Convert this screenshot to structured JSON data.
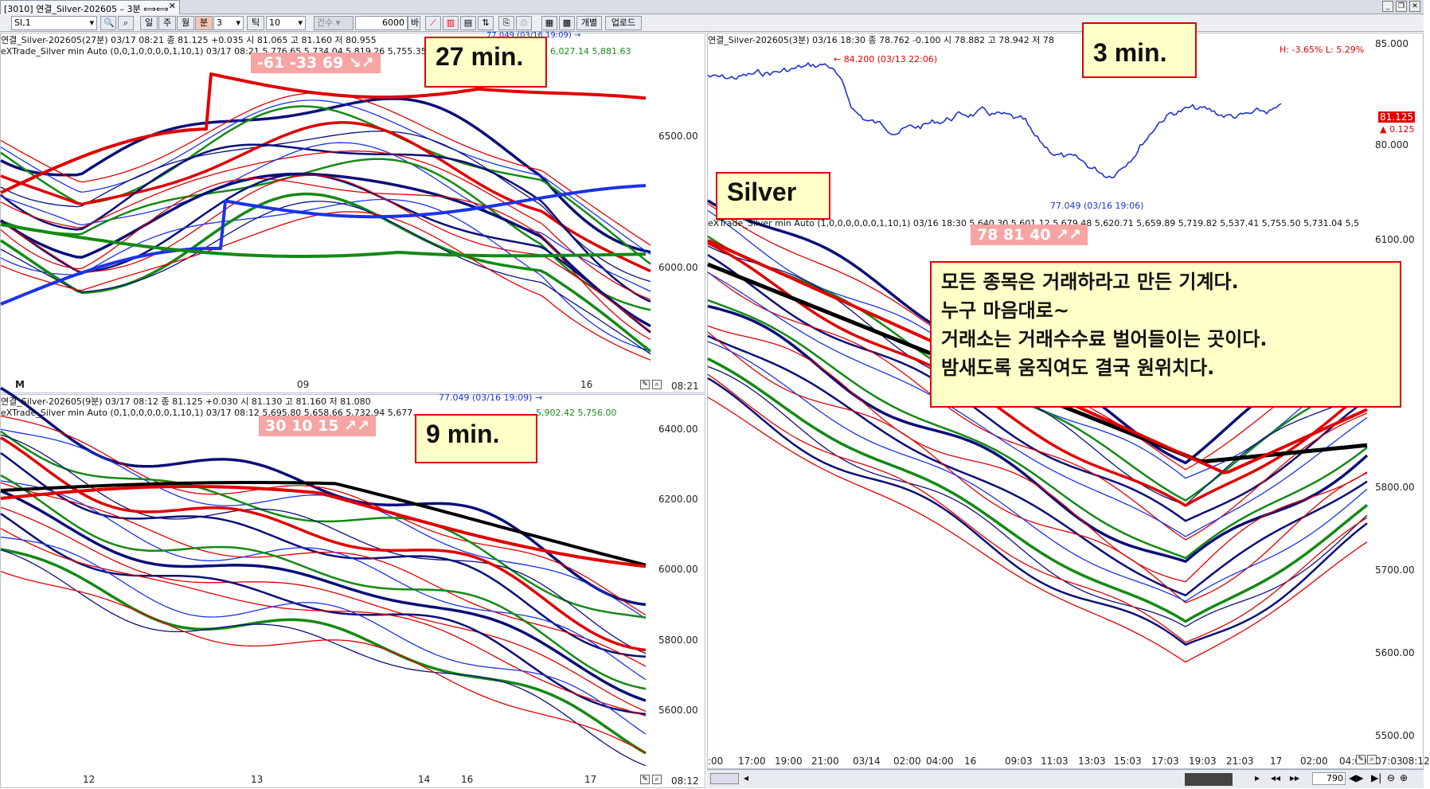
{
  "window": {
    "tab_title": "[3010] 연결_Silver-202605 – 3분 ⟺⟺",
    "close": "✕"
  },
  "toolbar": {
    "symbol": "SI,1",
    "periods": [
      "일",
      "주",
      "월",
      "분"
    ],
    "interval": "3",
    "tick_label": "틱",
    "tick_value": "10",
    "count_label": "건수",
    "count_value": "6000",
    "count_unit": "바",
    "separate": "개별",
    "upload": "업로드"
  },
  "pane_27": {
    "header1": "연결_Silver-202605(27분) 03/17 08:21 종 81.125 +0.035 시 81.065 고 81.160 저 80.955",
    "header2": "eXTrade_Silver min Auto (0,0,1,0,0,0,0,1,10,1) 03/17 08:21 5,776.65 5,734.04 5,819.26 5,755.35",
    "header2_right": "6,027.14 5,881.63",
    "badge": "-61 -33 69 ↘↗",
    "label": "27 min.",
    "yticks": [
      "6500.00",
      "6000.00"
    ],
    "xticks": [
      "M",
      "09",
      "16"
    ],
    "time": "08:21",
    "top_note": "77.049 (03/16 19:09) →"
  },
  "pane_9": {
    "header1": "연결_Silver-202605(9분) 03/17 08:12 종 81.125 +0.030 시 81.130 고 81.160 저 81.080",
    "header2": "eXTrade_Silver min Auto (0,1,0,0,0,0,0,1,10,1) 03/17 08:12 5,695.80 5,658.66 5,732.94 5,677.",
    "header2_right": "5,902.42 5,756.00",
    "badge": "30 10 15 ↗↗",
    "label": "9 min.",
    "yticks": [
      "6400.00",
      "6200.00",
      "6000.00",
      "5800.00",
      "5600.00"
    ],
    "xticks": [
      "12",
      "13",
      "14",
      "16",
      "17"
    ],
    "time": "08:12",
    "top_note": "77.049 (03/16 19:09) →"
  },
  "pane_3": {
    "header1": "연결_Silver-202605(3분) 03/16 18:30 종 78.762 -0.100 시 78.882 고 78.942 저 78",
    "price_high": "← 84.200 (03/13 22:06)",
    "price_low": "77.049 (03/16 19:06)",
    "hl": "H: -3.65%  L: 5.29%",
    "price_yticks": [
      "85.000",
      "80.000"
    ],
    "last_price": "81.125",
    "last_change": "▲ 0.125",
    "label": "3 min.",
    "silver": "Silver",
    "header2": "eXTrade_Silver min Auto (1,0,0,0,0,0,0,1,10,1) 03/16 18:30 5,640.30 5,601.12 5,679.48 5,620.71 5,659.89 5,719.82 5,537.41 5,755.50 5,731.04 5,5",
    "badge": "78 81 40 ↗↗",
    "yticks": [
      "6100.00",
      "5800.00",
      "5700.00",
      "5600.00",
      "5500.00"
    ],
    "xticks": [
      ":00",
      "17:00",
      "19:00",
      "21:00",
      "03/14",
      "02:00",
      "04:00",
      "16",
      "09:03",
      "11:03",
      "13:03",
      "15:03",
      "17:03",
      "19:03",
      "21:03",
      "17",
      "02:00",
      "04:00",
      "07:03"
    ],
    "time": "08:12",
    "zoom": "790"
  },
  "note": "모든 종목은 거래하라고 만든 기계다.\n누구 마음대로~\n거래소는 거래수수료 벌어들이는 곳이다.\n밤새도록 움직여도 결국 원위치다.",
  "colors": {
    "red": "#e00000",
    "navy": "#0a0f78",
    "blue": "#1a33e6",
    "green": "#138a13",
    "black": "#000000"
  }
}
